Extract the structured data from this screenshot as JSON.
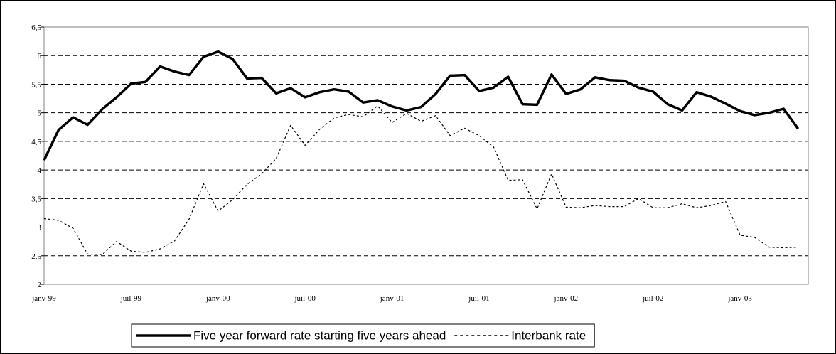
{
  "chart_data": {
    "type": "line",
    "categories": [
      "janv-99",
      null,
      null,
      null,
      null,
      null,
      "juil-99",
      null,
      null,
      null,
      null,
      null,
      "janv-00",
      null,
      null,
      null,
      null,
      null,
      "juil-00",
      null,
      null,
      null,
      null,
      null,
      "janv-01",
      null,
      null,
      null,
      null,
      null,
      "juil-01",
      null,
      null,
      null,
      null,
      null,
      "janv-02",
      null,
      null,
      null,
      null,
      null,
      "juil-02",
      null,
      null,
      null,
      null,
      null,
      "janv-03",
      null,
      null,
      null,
      null
    ],
    "series": [
      {
        "name": "Five year forward rate starting five years ahead",
        "color": "#000000",
        "style": "solid",
        "values": [
          4.17,
          4.7,
          4.92,
          4.79,
          5.06,
          5.27,
          5.51,
          5.54,
          5.81,
          5.72,
          5.66,
          5.98,
          6.07,
          5.94,
          5.6,
          5.61,
          5.34,
          5.43,
          5.27,
          5.36,
          5.41,
          5.37,
          5.18,
          5.22,
          5.11,
          5.04,
          5.1,
          5.33,
          5.65,
          5.66,
          5.38,
          5.44,
          5.63,
          5.15,
          5.14,
          5.67,
          5.33,
          5.41,
          5.62,
          5.57,
          5.56,
          5.44,
          5.37,
          5.15,
          5.04,
          5.36,
          5.28,
          5.16,
          5.03,
          4.96,
          5.0,
          5.07,
          4.72
        ]
      },
      {
        "name": "Interbank rate",
        "color": "#000000",
        "style": "dashed",
        "values": [
          3.15,
          3.12,
          2.98,
          2.53,
          2.52,
          2.75,
          2.58,
          2.56,
          2.62,
          2.76,
          3.14,
          3.76,
          3.28,
          3.48,
          3.75,
          3.93,
          4.2,
          4.78,
          4.43,
          4.71,
          4.91,
          4.97,
          4.93,
          5.12,
          4.83,
          4.99,
          4.85,
          4.95,
          4.6,
          4.73,
          4.6,
          4.4,
          3.82,
          3.83,
          3.32,
          3.93,
          3.35,
          3.34,
          3.38,
          3.36,
          3.36,
          3.5,
          3.34,
          3.34,
          3.41,
          3.34,
          3.38,
          3.45,
          2.86,
          2.82,
          2.65,
          2.64,
          2.65
        ]
      }
    ],
    "ylim": [
      2,
      6.5
    ],
    "yticks": [
      2,
      {
        "value": 2.5,
        "label": "2,5"
      },
      3,
      {
        "value": 3.5,
        "label": "3,5"
      },
      4,
      {
        "value": 4.5,
        "label": "4,5"
      },
      5,
      {
        "value": 5.5,
        "label": "5,5"
      },
      6,
      {
        "value": 6.5,
        "label": "6,5"
      }
    ],
    "grid": true,
    "legend": "bottom"
  }
}
